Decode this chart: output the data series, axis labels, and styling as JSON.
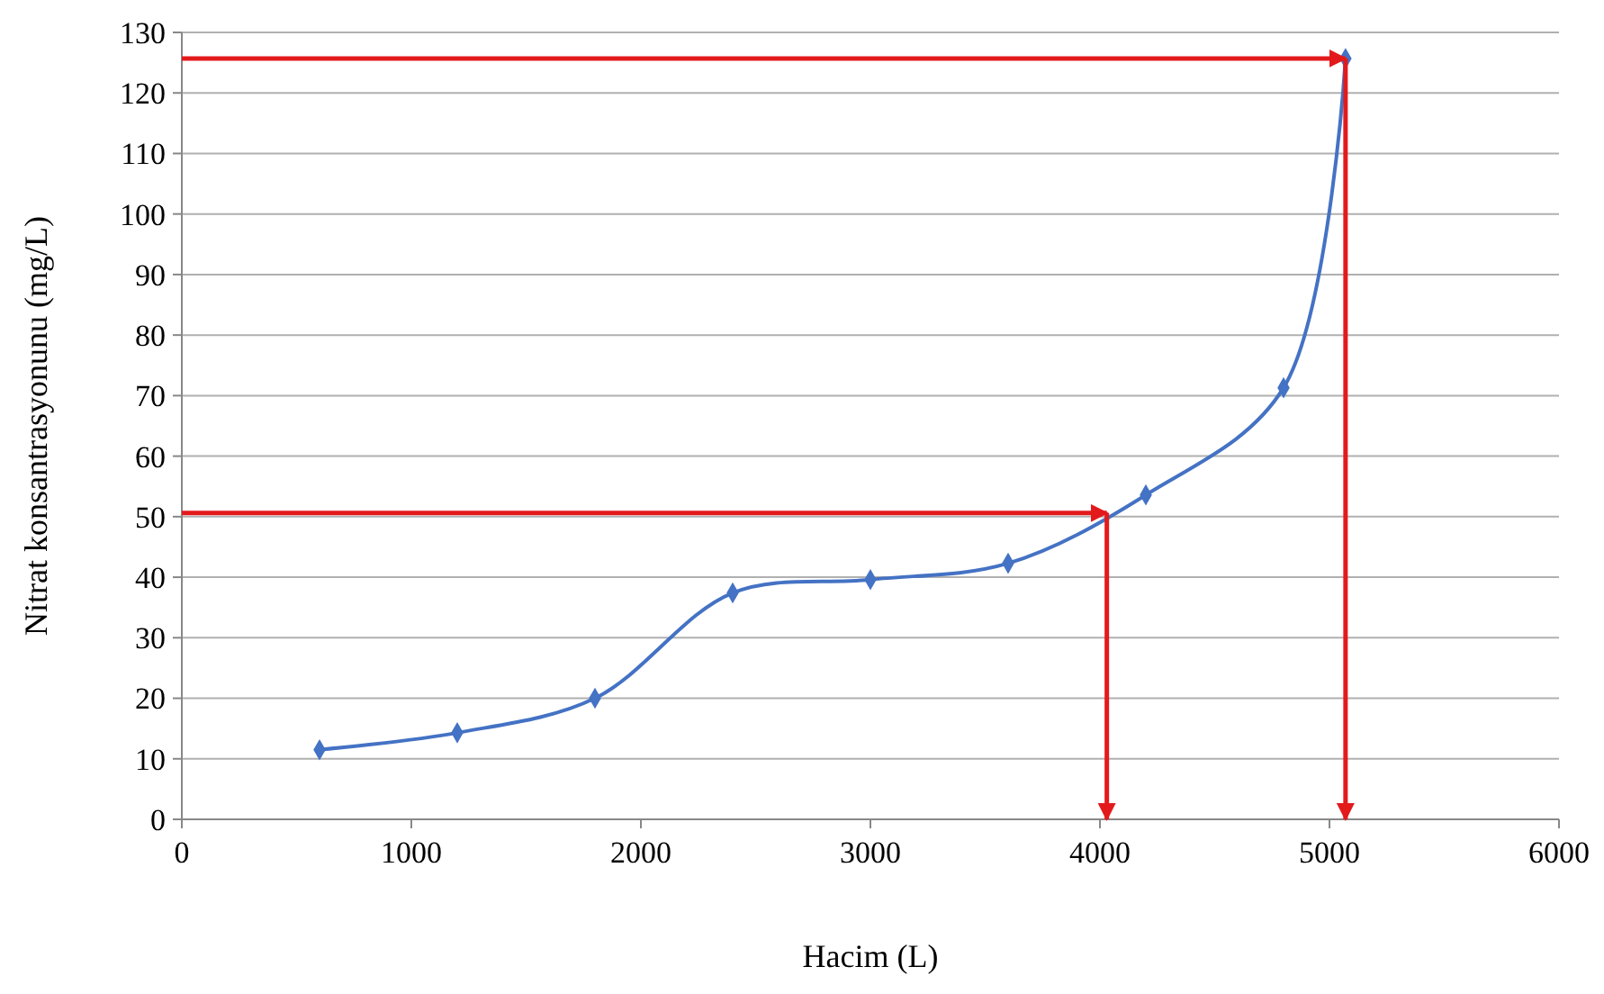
{
  "chart_data": {
    "type": "line",
    "xlabel": "Hacim (L)",
    "ylabel": "Nitrat konsantrasyonunu (mg/L)",
    "x": [
      600,
      1200,
      1800,
      2400,
      3000,
      3600,
      4200,
      4800,
      5070
    ],
    "series": [
      {
        "color": "#4472c4",
        "values": [
          11.5,
          14.3,
          20,
          37.4,
          39.6,
          42.3,
          53.6,
          71.3,
          125.7
        ]
      }
    ],
    "xlim": [
      0,
      6000
    ],
    "xticks": [
      0,
      1000,
      2000,
      3000,
      4000,
      5000,
      6000
    ],
    "ylim": [
      0,
      130
    ],
    "yticks": [
      0,
      10,
      20,
      30,
      40,
      50,
      60,
      70,
      80,
      90,
      100,
      110,
      120,
      130
    ],
    "grid": "y",
    "marker": "diamond",
    "line_style": "solid",
    "ref_lines": [
      {
        "axis": "y",
        "value": 125.7,
        "color": "#e31a1c"
      },
      {
        "axis": "x",
        "value": 5070,
        "color": "#e31a1c"
      },
      {
        "axis": "y",
        "value": 50.6,
        "color": "#e31a1c"
      },
      {
        "axis": "x",
        "value": 4030,
        "color": "#e31a1c"
      }
    ]
  }
}
